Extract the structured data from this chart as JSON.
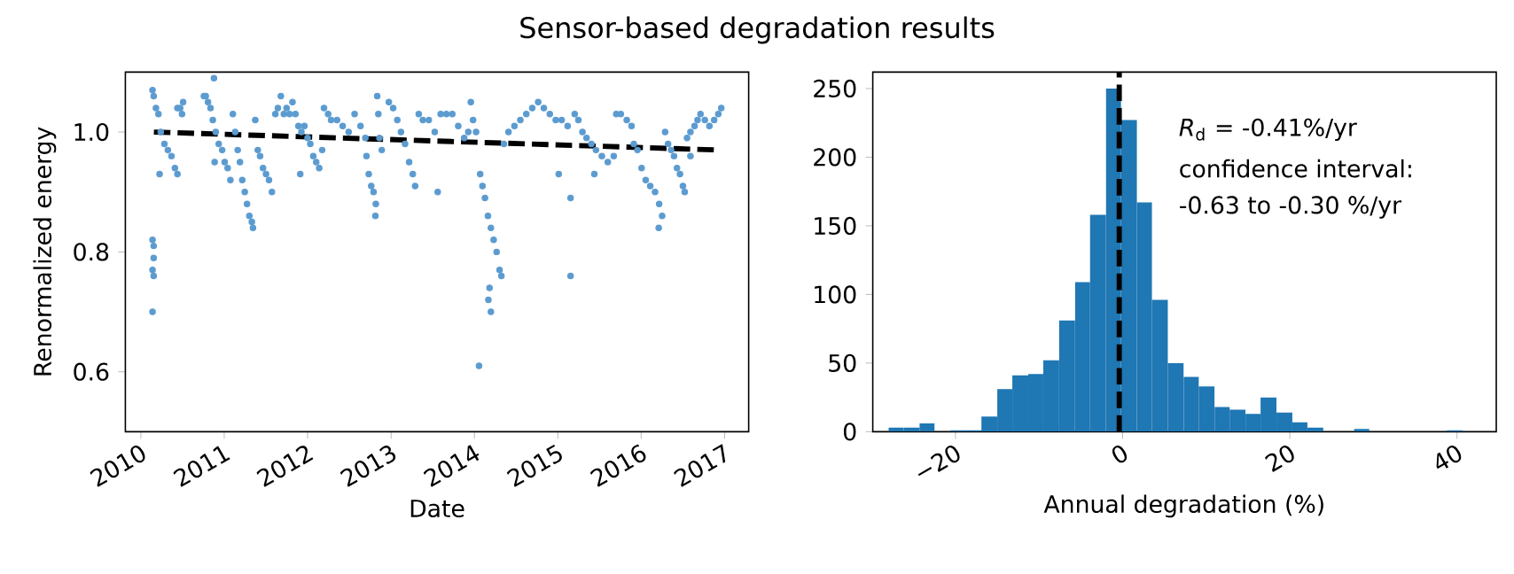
{
  "chart_data": [
    {
      "type": "scatter",
      "title": "Sensor-based degradation results",
      "xlabel": "Date",
      "ylabel": "Renormalized energy",
      "xlim": [
        "2009-10-25",
        "2017-04-16"
      ],
      "xticks": [
        "2010",
        "2011",
        "2012",
        "2013",
        "2014",
        "2015",
        "2016",
        "2017"
      ],
      "ylim": [
        0.5,
        1.1
      ],
      "yticks": [
        {
          "value": 0.6,
          "label": "0.6"
        },
        {
          "value": 0.8,
          "label": "0.8"
        },
        {
          "value": 1.0,
          "label": "1.0"
        }
      ],
      "series": [
        {
          "type": "scatter",
          "color": "#5b9bd0",
          "marker": "circle",
          "x": [
            "2010-02-21",
            "2010-02-26",
            "2010-03-08",
            "2010-03-19",
            "2010-03-29",
            "2010-04-14",
            "2010-04-29",
            "2010-05-15",
            "2010-05-30",
            "2010-06-10",
            "2010-02-21",
            "2010-02-26",
            "2010-02-26",
            "2010-02-21",
            "2010-02-26",
            "2010-02-21",
            "2010-03-24",
            "2010-06-10",
            "2010-06-22",
            "2010-07-05",
            "2010-06-30",
            "2010-10-04",
            "2010-11-17",
            "2010-10-12",
            "2010-10-22",
            "2010-11-02",
            "2010-11-12",
            "2010-11-25",
            "2010-12-08",
            "2010-12-23",
            "2011-01-03",
            "2011-01-16",
            "2011-01-28",
            "2010-11-20",
            "2011-02-08",
            "2011-02-18",
            "2011-03-01",
            "2011-03-11",
            "2011-03-21",
            "2011-04-01",
            "2011-04-11",
            "2011-04-21",
            "2011-05-02",
            "2011-05-07",
            "2011-05-17",
            "2011-05-28",
            "2011-06-07",
            "2011-06-20",
            "2011-07-03",
            "2011-07-16",
            "2011-07-29",
            "2011-08-13",
            "2011-08-24",
            "2011-09-06",
            "2011-09-19",
            "2011-10-01",
            "2011-10-14",
            "2011-10-27",
            "2011-11-09",
            "2011-11-22",
            "2011-12-05",
            "2011-12-18",
            "2011-11-30",
            "2012-01-13",
            "2012-01-26",
            "2012-02-08",
            "2012-02-21",
            "2012-03-05",
            "2012-01-01",
            "2012-03-13",
            "2012-03-31",
            "2012-04-13",
            "2012-05-09",
            "2012-06-03",
            "2012-06-29",
            "2012-07-25",
            "2012-08-20",
            "2012-09-10",
            "2012-09-15",
            "2012-09-25",
            "2012-10-06",
            "2012-10-16",
            "2012-10-26",
            "2012-10-24",
            "2012-11-01",
            "2012-11-06",
            "2012-11-11",
            "2012-11-21",
            "2012-12-22",
            "2013-01-10",
            "2013-01-28",
            "2013-02-13",
            "2013-03-03",
            "2013-03-21",
            "2013-04-06",
            "2013-04-16",
            "2013-05-02",
            "2013-05-20",
            "2013-06-15",
            "2013-07-11",
            "2013-08-06",
            "2013-08-31",
            "2013-09-26",
            "2013-10-22",
            "2013-07-24",
            "2013-11-17",
            "2013-12-05",
            "2013-12-16",
            "2013-12-26",
            "2014-01-08",
            "2014-01-26",
            "2014-02-05",
            "2014-02-16",
            "2014-03-01",
            "2014-03-14",
            "2014-03-26",
            "2014-04-08",
            "2014-04-21",
            "2014-04-29",
            "2014-03-08",
            "2014-03-03",
            "2014-03-14",
            "2014-01-21",
            "2014-05-10",
            "2014-05-30",
            "2014-06-25",
            "2014-07-21",
            "2014-08-16",
            "2014-09-11",
            "2014-10-07",
            "2014-11-01",
            "2014-11-27",
            "2014-12-23",
            "2015-01-18",
            "2015-02-13",
            "2015-01-05",
            "2015-02-26",
            "2015-02-26",
            "2015-03-16",
            "2015-04-01",
            "2015-04-19",
            "2015-05-07",
            "2015-05-28",
            "2015-06-17",
            "2015-07-13",
            "2015-08-08",
            "2015-09-03",
            "2015-06-10",
            "2015-09-14",
            "2015-10-04",
            "2015-10-30",
            "2015-11-20",
            "2015-11-30",
            "2015-12-16",
            "2016-01-03",
            "2016-01-21",
            "2016-02-10",
            "2016-03-02",
            "2016-03-20",
            "2016-04-02",
            "2016-03-18",
            "2016-04-15",
            "2016-04-28",
            "2016-05-11",
            "2016-05-24",
            "2016-06-06",
            "2016-06-19",
            "2016-07-02",
            "2016-07-10",
            "2016-07-20",
            "2016-08-04",
            "2016-08-22",
            "2016-09-04",
            "2016-09-17",
            "2016-10-06",
            "2016-10-26",
            "2016-11-16",
            "2016-12-04",
            "2016-12-17",
            "2016-08-04"
          ],
          "values": [
            1.07,
            1.06,
            1.04,
            1.03,
            1.0,
            0.98,
            0.97,
            0.96,
            0.94,
            0.93,
            0.82,
            0.81,
            0.79,
            0.77,
            0.76,
            0.7,
            0.93,
            1.04,
            1.04,
            1.05,
            1.03,
            1.06,
            1.09,
            1.06,
            1.05,
            1.04,
            1.02,
            1.0,
            0.98,
            0.97,
            0.95,
            0.94,
            0.92,
            0.95,
            1.03,
            1.0,
            0.97,
            0.95,
            0.92,
            0.9,
            0.88,
            0.86,
            0.85,
            0.84,
            1.02,
            0.97,
            0.96,
            0.94,
            0.93,
            0.92,
            0.9,
            1.03,
            1.04,
            1.06,
            1.03,
            1.04,
            1.03,
            1.05,
            1.03,
            1.01,
            1.0,
            1.01,
            0.93,
            0.98,
            0.96,
            0.95,
            0.94,
            0.97,
            0.99,
            1.04,
            1.03,
            1.02,
            1.02,
            1.01,
            1.0,
            1.03,
            1.01,
            0.99,
            0.96,
            0.93,
            0.91,
            0.9,
            0.88,
            0.86,
            1.06,
            1.03,
            0.99,
            0.97,
            1.05,
            1.04,
            1.02,
            1.0,
            0.98,
            0.95,
            0.93,
            0.91,
            1.03,
            1.02,
            1.02,
            1.0,
            1.03,
            1.03,
            1.03,
            1.01,
            0.9,
            0.99,
            1.0,
            1.05,
            1.02,
            1.0,
            0.93,
            0.91,
            0.89,
            0.86,
            0.84,
            0.82,
            0.8,
            0.77,
            0.76,
            0.74,
            0.72,
            0.7,
            0.61,
            0.98,
            1.0,
            1.01,
            1.02,
            1.03,
            1.04,
            1.05,
            1.04,
            1.03,
            1.02,
            1.02,
            1.01,
            0.93,
            0.89,
            0.76,
            1.03,
            1.02,
            1.0,
            0.99,
            0.98,
            0.97,
            0.96,
            0.95,
            0.96,
            0.93,
            1.03,
            1.03,
            1.02,
            1.01,
            0.98,
            0.97,
            0.94,
            0.92,
            0.91,
            0.9,
            0.88,
            0.86,
            0.84,
            1.0,
            0.98,
            0.97,
            0.96,
            0.94,
            0.93,
            0.91,
            0.9,
            0.99,
            1.0,
            1.01,
            1.02,
            1.03,
            1.02,
            1.01,
            1.02,
            1.03,
            1.04,
            0.96
          ]
        },
        {
          "type": "line",
          "color": "#000000",
          "line_style": "dashed",
          "x": [
            "2010-02-27",
            "2016-12-07"
          ],
          "values": [
            1.0,
            0.97
          ]
        }
      ]
    },
    {
      "type": "histogram",
      "xlabel": "Annual degradation (%)",
      "color": "#1f77b4",
      "bins": [
        -28.0,
        -26.2,
        -24.3,
        -22.5,
        -20.6,
        -18.7,
        -16.9,
        -15.0,
        -13.2,
        -11.3,
        -9.5,
        -7.6,
        -5.7,
        -3.9,
        -2.0,
        -0.2,
        1.7,
        3.5,
        5.4,
        7.3,
        9.1,
        11.0,
        12.8,
        14.7,
        16.5,
        18.4,
        20.3,
        22.1,
        24.0,
        27.7,
        29.5,
        38.8,
        40.7
      ],
      "values": [
        3,
        3,
        6,
        0,
        1,
        1,
        11,
        31,
        41,
        42,
        52,
        81,
        109,
        158,
        250,
        227,
        167,
        96,
        50,
        40,
        33,
        18,
        16,
        13,
        25,
        14,
        7,
        3,
        0,
        2,
        0,
        1
      ],
      "xlim": [
        -29.9,
        44.7
      ],
      "xticks": [
        {
          "value": -20,
          "label": "−20"
        },
        0,
        20,
        40
      ],
      "ylim": [
        0,
        262
      ],
      "yticks": [
        0,
        50,
        100,
        150,
        200,
        250
      ],
      "ref_lines": [
        {
          "axis": "x",
          "value": -0.41,
          "color": "#000000",
          "line_style": "dashed"
        }
      ],
      "annotations": [
        "*R*$_{d}$ = -0.41%/yr",
        "confidence interval:",
        "-0.63 to -0.30 %/yr"
      ]
    }
  ]
}
